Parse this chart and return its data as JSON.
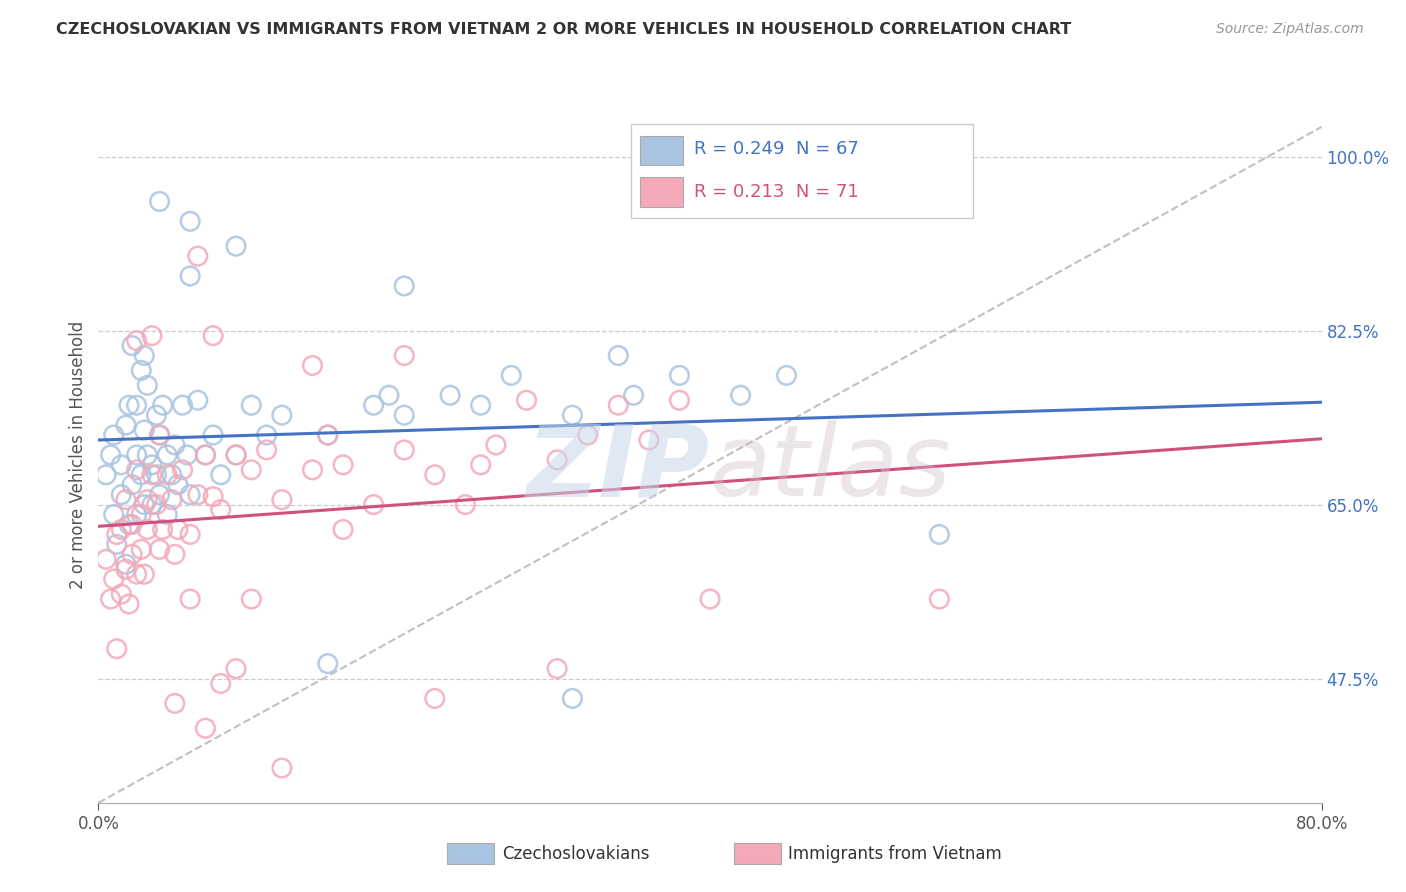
{
  "title": "CZECHOSLOVAKIAN VS IMMIGRANTS FROM VIETNAM 2 OR MORE VEHICLES IN HOUSEHOLD CORRELATION CHART",
  "source": "Source: ZipAtlas.com",
  "ylabel": "2 or more Vehicles in Household",
  "x_min": 0.0,
  "x_max": 0.8,
  "y_min": 0.35,
  "y_max": 1.05,
  "x_ticks": [
    0.0,
    0.8
  ],
  "x_tick_labels": [
    "0.0%",
    "80.0%"
  ],
  "y_ticks": [
    0.475,
    0.65,
    0.825,
    1.0
  ],
  "y_tick_labels": [
    "47.5%",
    "65.0%",
    "82.5%",
    "100.0%"
  ],
  "blue_R": 0.249,
  "blue_N": 67,
  "pink_R": 0.213,
  "pink_N": 71,
  "legend_label_blue": "Czechoslovakians",
  "legend_label_pink": "Immigrants from Vietnam",
  "blue_color": "#a8c4e0",
  "pink_color": "#f4a8b8",
  "blue_line_color": "#4472c4",
  "pink_line_color": "#d05080",
  "dashed_line_color": "#c0c0c0",
  "watermark_zip": "ZIP",
  "watermark_atlas": "atlas",
  "blue_scatter_x": [
    0.005,
    0.008,
    0.01,
    0.01,
    0.012,
    0.015,
    0.015,
    0.018,
    0.018,
    0.02,
    0.02,
    0.022,
    0.022,
    0.025,
    0.025,
    0.025,
    0.028,
    0.028,
    0.03,
    0.03,
    0.03,
    0.032,
    0.032,
    0.035,
    0.035,
    0.038,
    0.038,
    0.04,
    0.04,
    0.042,
    0.045,
    0.045,
    0.048,
    0.05,
    0.052,
    0.055,
    0.058,
    0.06,
    0.065,
    0.07,
    0.075,
    0.08,
    0.09,
    0.1,
    0.11,
    0.12,
    0.15,
    0.18,
    0.2,
    0.23,
    0.27,
    0.31,
    0.35,
    0.38,
    0.42,
    0.45,
    0.19,
    0.25,
    0.15,
    0.09,
    0.06,
    0.04,
    0.06,
    0.2,
    0.34,
    0.55,
    0.31
  ],
  "blue_scatter_y": [
    0.68,
    0.7,
    0.64,
    0.72,
    0.61,
    0.66,
    0.69,
    0.73,
    0.59,
    0.75,
    0.63,
    0.67,
    0.81,
    0.64,
    0.7,
    0.75,
    0.68,
    0.785,
    0.65,
    0.725,
    0.8,
    0.7,
    0.77,
    0.65,
    0.69,
    0.68,
    0.74,
    0.66,
    0.72,
    0.75,
    0.64,
    0.7,
    0.68,
    0.71,
    0.67,
    0.75,
    0.7,
    0.66,
    0.755,
    0.7,
    0.72,
    0.68,
    0.7,
    0.75,
    0.72,
    0.74,
    0.72,
    0.75,
    0.74,
    0.76,
    0.78,
    0.74,
    0.76,
    0.78,
    0.76,
    0.78,
    0.76,
    0.75,
    0.49,
    0.91,
    0.935,
    0.955,
    0.88,
    0.87,
    0.8,
    0.62,
    0.455
  ],
  "pink_scatter_x": [
    0.005,
    0.008,
    0.01,
    0.012,
    0.012,
    0.015,
    0.015,
    0.018,
    0.018,
    0.02,
    0.022,
    0.022,
    0.025,
    0.025,
    0.028,
    0.028,
    0.03,
    0.032,
    0.032,
    0.035,
    0.038,
    0.04,
    0.042,
    0.045,
    0.048,
    0.05,
    0.052,
    0.055,
    0.06,
    0.065,
    0.07,
    0.075,
    0.08,
    0.09,
    0.1,
    0.11,
    0.12,
    0.14,
    0.16,
    0.18,
    0.2,
    0.22,
    0.24,
    0.26,
    0.28,
    0.3,
    0.32,
    0.34,
    0.36,
    0.38,
    0.2,
    0.15,
    0.25,
    0.12,
    0.09,
    0.07,
    0.06,
    0.1,
    0.08,
    0.4,
    0.3,
    0.22,
    0.16,
    0.14,
    0.05,
    0.035,
    0.025,
    0.04,
    0.065,
    0.075,
    0.55
  ],
  "pink_scatter_y": [
    0.595,
    0.555,
    0.575,
    0.62,
    0.505,
    0.56,
    0.625,
    0.585,
    0.655,
    0.55,
    0.6,
    0.63,
    0.685,
    0.58,
    0.64,
    0.605,
    0.58,
    0.655,
    0.625,
    0.68,
    0.65,
    0.605,
    0.625,
    0.68,
    0.655,
    0.6,
    0.625,
    0.685,
    0.62,
    0.66,
    0.7,
    0.658,
    0.645,
    0.7,
    0.685,
    0.705,
    0.655,
    0.685,
    0.625,
    0.65,
    0.705,
    0.68,
    0.65,
    0.71,
    0.755,
    0.695,
    0.72,
    0.75,
    0.715,
    0.755,
    0.8,
    0.72,
    0.69,
    0.385,
    0.485,
    0.425,
    0.555,
    0.555,
    0.47,
    0.555,
    0.485,
    0.455,
    0.69,
    0.79,
    0.45,
    0.82,
    0.815,
    0.72,
    0.9,
    0.82,
    0.555
  ]
}
